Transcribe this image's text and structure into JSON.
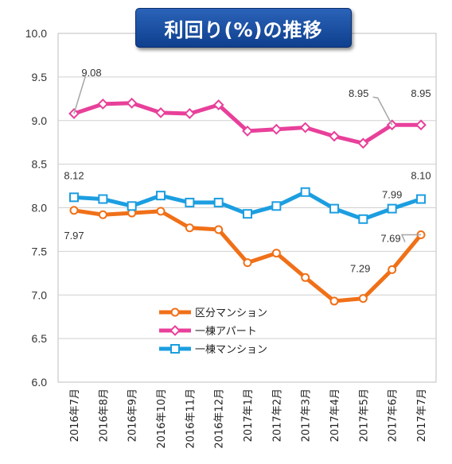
{
  "chart_data": {
    "type": "line",
    "title": "利回り(%)の推移",
    "xlabel": "",
    "ylabel": "",
    "ylim": [
      6.0,
      10.0
    ],
    "y_ticks": [
      "6.0",
      "6.5",
      "7.0",
      "7.5",
      "8.0",
      "8.5",
      "9.0",
      "9.5",
      "10.0"
    ],
    "grid": "horizontal",
    "legend_position": "lower-left inside plot",
    "categories": [
      "2016年7月",
      "2016年8月",
      "2016年9月",
      "2016年10月",
      "2016年11月",
      "2016年12月",
      "2017年1月",
      "2017年2月",
      "2017年3月",
      "2017年4月",
      "2017年5月",
      "2017年6月",
      "2017年7月"
    ],
    "series": [
      {
        "name": "区分マンション",
        "color": "#f07018",
        "marker": "circle",
        "values": [
          7.97,
          7.92,
          7.94,
          7.96,
          7.77,
          7.75,
          7.37,
          7.48,
          7.2,
          6.93,
          6.96,
          7.29,
          7.69
        ]
      },
      {
        "name": "一棟アパート",
        "color": "#e8409a",
        "marker": "diamond",
        "values": [
          9.08,
          9.19,
          9.2,
          9.09,
          9.08,
          9.18,
          8.88,
          8.9,
          8.92,
          8.82,
          8.74,
          8.95,
          8.95
        ]
      },
      {
        "name": "一棟マンション",
        "color": "#1c9ee0",
        "marker": "square",
        "values": [
          8.12,
          8.1,
          8.02,
          8.14,
          8.06,
          8.06,
          7.93,
          8.02,
          8.18,
          7.99,
          7.87,
          7.99,
          8.1
        ]
      }
    ],
    "data_labels": [
      {
        "series": 1,
        "index": 0,
        "text": "9.08"
      },
      {
        "series": 1,
        "index": 11,
        "text": "8.95"
      },
      {
        "series": 1,
        "index": 12,
        "text": "8.95"
      },
      {
        "series": 2,
        "index": 0,
        "text": "8.12"
      },
      {
        "series": 2,
        "index": 11,
        "text": "7.99"
      },
      {
        "series": 2,
        "index": 12,
        "text": "8.10"
      },
      {
        "series": 0,
        "index": 0,
        "text": "7.97"
      },
      {
        "series": 0,
        "index": 11,
        "text": "7.29"
      },
      {
        "series": 0,
        "index": 12,
        "text": "7.69"
      }
    ]
  }
}
